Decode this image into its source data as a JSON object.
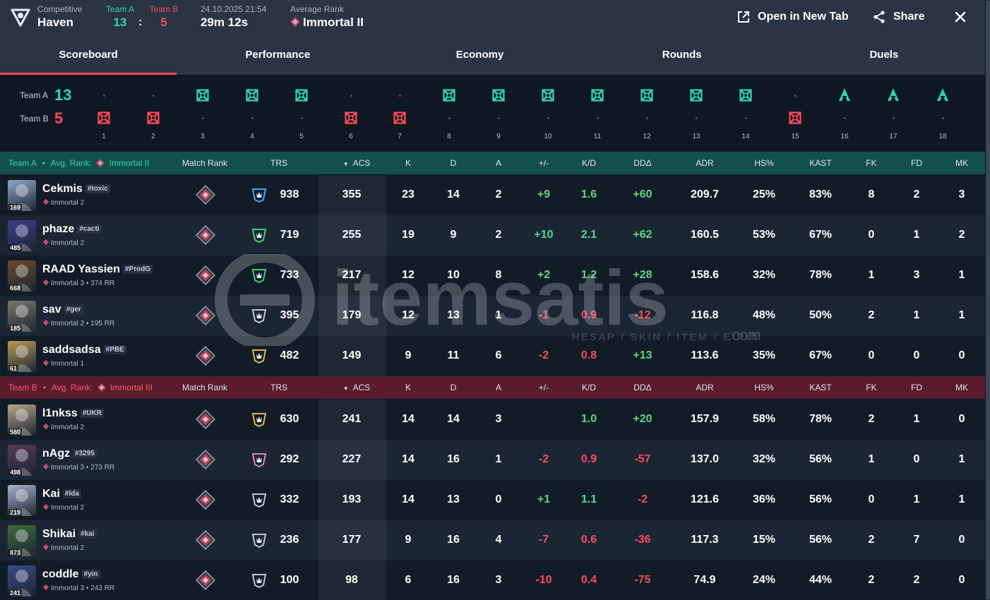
{
  "header": {
    "mode": "Competitive",
    "map": "Haven",
    "team_a_label": "Team A",
    "team_b_label": "Team B",
    "score_a": "13",
    "score_sep": ":",
    "score_b": "5",
    "datetime": "24.10.2025 21:54",
    "duration": "29m 12s",
    "avg_rank_label": "Average Rank",
    "avg_rank": "Immortal II",
    "open_new_tab": "Open in New Tab",
    "share": "Share"
  },
  "tabs": [
    "Scoreboard",
    "Performance",
    "Economy",
    "Rounds",
    "Duels"
  ],
  "timeline": {
    "team_a_label": "Team A",
    "team_a_score": "13",
    "team_b_label": "Team B",
    "team_b_score": "5",
    "rounds": [
      {
        "n": "1",
        "w": "B",
        "icon": "elim"
      },
      {
        "n": "2",
        "w": "B",
        "icon": "elim"
      },
      {
        "n": "3",
        "w": "A",
        "icon": "elim"
      },
      {
        "n": "4",
        "w": "A",
        "icon": "elim"
      },
      {
        "n": "5",
        "w": "A",
        "icon": "elim"
      },
      {
        "n": "6",
        "w": "B",
        "icon": "elim"
      },
      {
        "n": "7",
        "w": "B",
        "icon": "elim"
      },
      {
        "n": "8",
        "w": "A",
        "icon": "elim"
      },
      {
        "n": "9",
        "w": "A",
        "icon": "elim"
      },
      {
        "n": "10",
        "w": "A",
        "icon": "elim"
      },
      {
        "n": "11",
        "w": "A",
        "icon": "elim"
      },
      {
        "n": "12",
        "w": "A",
        "icon": "elim"
      },
      {
        "n": "13",
        "w": "A",
        "icon": "elim"
      },
      {
        "n": "14",
        "w": "A",
        "icon": "elim"
      },
      {
        "n": "15",
        "w": "B",
        "icon": "elim"
      },
      {
        "n": "16",
        "w": "A",
        "icon": "defuse"
      },
      {
        "n": "17",
        "w": "A",
        "icon": "defuse"
      },
      {
        "n": "18",
        "w": "A",
        "icon": "defuse"
      }
    ]
  },
  "columns": {
    "match_rank": "Match Rank",
    "trs": "TRS",
    "acs": "ACS",
    "k": "K",
    "d": "D",
    "a": "A",
    "pm": "+/-",
    "kd": "K/D",
    "dda": "DDΔ",
    "adr": "ADR",
    "hs": "HS%",
    "kast": "KAST",
    "fk": "FK",
    "fd": "FD",
    "mk": "MK"
  },
  "team_a": {
    "label": "Team A",
    "sep": "•",
    "avg_rank_label": "Avg. Rank:",
    "avg_rank": "Immortal II",
    "players": [
      {
        "name": "Cekmis",
        "tag": "#toxic",
        "level": "169",
        "rank": "Immortal 2",
        "trs": "938",
        "acs": "355",
        "k": "23",
        "d": "14",
        "a": "2",
        "pm": "+9",
        "kd": "1.6",
        "dda": "+60",
        "adr": "209.7",
        "hs": "25%",
        "kast": "83%",
        "fk": "8",
        "fd": "2",
        "mk": "3",
        "trs_color": "#3ea8ff",
        "av": "#8fa6c4"
      },
      {
        "name": "phaze",
        "tag": "#cacti",
        "level": "485",
        "rank": "Immortal 2",
        "trs": "719",
        "acs": "255",
        "k": "19",
        "d": "9",
        "a": "2",
        "pm": "+10",
        "kd": "2.1",
        "dda": "+62",
        "adr": "160.5",
        "hs": "53%",
        "kast": "67%",
        "fk": "0",
        "fd": "1",
        "mk": "2",
        "trs_color": "#3fcf7a",
        "av": "#3b3f8a"
      },
      {
        "name": "RAAD Yassien",
        "tag": "#ProdG",
        "level": "668",
        "rank": "Immortal 3 • 374 RR",
        "trs": "733",
        "acs": "217",
        "k": "12",
        "d": "10",
        "a": "8",
        "pm": "+2",
        "kd": "1.2",
        "dda": "+28",
        "adr": "158.6",
        "hs": "32%",
        "kast": "78%",
        "fk": "1",
        "fd": "3",
        "mk": "1",
        "trs_color": "#3fcf7a",
        "av": "#6a4a2e"
      },
      {
        "name": "sav",
        "tag": "#ger",
        "level": "185",
        "rank": "Immortal 2 • 195 RR",
        "trs": "395",
        "acs": "179",
        "k": "12",
        "d": "13",
        "a": "1",
        "pm": "-1",
        "kd": "0.9",
        "dda": "-12",
        "adr": "116.8",
        "hs": "48%",
        "kast": "50%",
        "fk": "2",
        "fd": "1",
        "mk": "1",
        "trs_color": "#c0c7d2",
        "av": "#7c7868"
      },
      {
        "name": "saddsadsa",
        "tag": "#PBE",
        "level": "61",
        "rank": "Immortal 1",
        "trs": "482",
        "acs": "149",
        "k": "9",
        "d": "11",
        "a": "6",
        "pm": "-2",
        "kd": "0.8",
        "dda": "+13",
        "adr": "113.6",
        "hs": "35%",
        "kast": "67%",
        "fk": "0",
        "fd": "0",
        "mk": "0",
        "trs_color": "#e8b04a",
        "av": "#b89a52"
      }
    ]
  },
  "team_b": {
    "label": "Team B",
    "sep": "•",
    "avg_rank_label": "Avg. Rank:",
    "avg_rank": "Immortal III",
    "players": [
      {
        "name": "l1nkss",
        "tag": "#UKR",
        "level": "580",
        "rank": "Immortal 2",
        "trs": "630",
        "acs": "241",
        "k": "14",
        "d": "14",
        "a": "3",
        "pm": "",
        "kd": "1.0",
        "dda": "+20",
        "adr": "157.9",
        "hs": "58%",
        "kast": "78%",
        "fk": "2",
        "fd": "1",
        "mk": "0",
        "trs_color": "#e8b04a",
        "av": "#b8a68a"
      },
      {
        "name": "nAgz",
        "tag": "#3295",
        "level": "498",
        "rank": "Immortal 3 • 273 RR",
        "trs": "292",
        "acs": "227",
        "k": "14",
        "d": "16",
        "a": "1",
        "pm": "-2",
        "kd": "0.9",
        "dda": "-57",
        "adr": "137.0",
        "hs": "32%",
        "kast": "56%",
        "fk": "1",
        "fd": "0",
        "mk": "1",
        "trs_color": "#d88aa0",
        "av": "#5a3a5a"
      },
      {
        "name": "Kai",
        "tag": "#lda",
        "level": "219",
        "rank": "Immortal 2",
        "trs": "332",
        "acs": "193",
        "k": "14",
        "d": "13",
        "a": "0",
        "pm": "+1",
        "kd": "1.1",
        "dda": "-2",
        "adr": "121.6",
        "hs": "36%",
        "kast": "56%",
        "fk": "0",
        "fd": "1",
        "mk": "1",
        "trs_color": "#c0c7d2",
        "av": "#a8b4c8"
      },
      {
        "name": "Shikai",
        "tag": "#kai",
        "level": "873",
        "rank": "Immortal 2",
        "trs": "236",
        "acs": "177",
        "k": "9",
        "d": "16",
        "a": "4",
        "pm": "-7",
        "kd": "0.6",
        "dda": "-36",
        "adr": "117.3",
        "hs": "15%",
        "kast": "56%",
        "fk": "2",
        "fd": "7",
        "mk": "0",
        "trs_color": "#c0c7d2",
        "av": "#3f6a3a"
      },
      {
        "name": "coddle",
        "tag": "#yin",
        "level": "241",
        "rank": "Immortal 3 • 243 RR",
        "trs": "100",
        "acs": "98",
        "k": "6",
        "d": "16",
        "a": "3",
        "pm": "-10",
        "kd": "0.4",
        "dda": "-75",
        "adr": "74.9",
        "hs": "24%",
        "kast": "44%",
        "fk": "2",
        "fd": "2",
        "mk": "0",
        "trs_color": "#c0c7d2",
        "av": "#3a4a8a"
      }
    ]
  },
  "watermark": {
    "brand": "itemsatis",
    "tagline": "HESAP / SKIN / ITEM / E-PIN",
    "suffix": ".com"
  },
  "colors": {
    "team_a": "#2bd6b8",
    "team_b": "#ff4a5c",
    "positive": "#5dd68a",
    "negative": "#ff4a5c",
    "accent": "#ff4655"
  }
}
